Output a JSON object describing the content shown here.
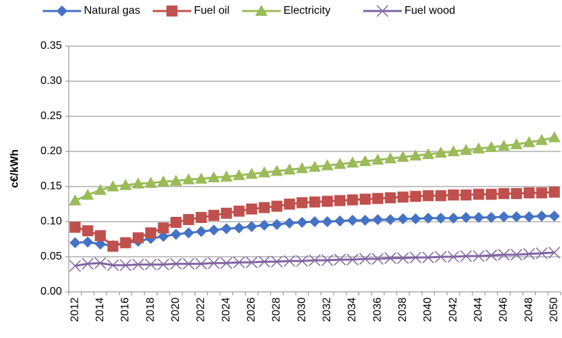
{
  "chart_data": {
    "type": "line",
    "y_label": "c€/kWh",
    "categories": [
      "2012",
      null,
      "2014",
      null,
      "2016",
      null,
      "2018",
      null,
      "2020",
      null,
      "2022",
      null,
      "2024",
      null,
      "2026",
      null,
      "2028",
      null,
      "2030",
      null,
      "2032",
      null,
      "2034",
      null,
      "2036",
      null,
      "2038",
      null,
      "2040",
      null,
      "2042",
      null,
      "2044",
      null,
      "2046",
      null,
      "2048",
      null,
      "2050"
    ],
    "series": [
      {
        "name": "Natural gas",
        "color": "#4472c4",
        "marker": "diamond",
        "values": [
          0.07,
          0.071,
          0.068,
          0.066,
          0.07,
          0.072,
          0.076,
          0.079,
          0.082,
          0.084,
          0.086,
          0.088,
          0.09,
          0.091,
          0.093,
          0.095,
          0.096,
          0.098,
          0.099,
          0.1,
          0.1,
          0.101,
          0.102,
          0.102,
          0.103,
          0.103,
          0.104,
          0.104,
          0.105,
          0.105,
          0.105,
          0.106,
          0.106,
          0.106,
          0.107,
          0.107,
          0.107,
          0.108,
          0.108
        ]
      },
      {
        "name": "Fuel oil",
        "color": "#c0504d",
        "marker": "square",
        "values": [
          0.092,
          0.087,
          0.08,
          0.065,
          0.07,
          0.077,
          0.084,
          0.091,
          0.099,
          0.103,
          0.106,
          0.109,
          0.112,
          0.115,
          0.118,
          0.12,
          0.122,
          0.125,
          0.127,
          0.128,
          0.129,
          0.13,
          0.131,
          0.132,
          0.133,
          0.134,
          0.135,
          0.136,
          0.137,
          0.137,
          0.138,
          0.138,
          0.139,
          0.139,
          0.14,
          0.14,
          0.141,
          0.141,
          0.142
        ]
      },
      {
        "name": "Electricity",
        "color": "#9bbb59",
        "marker": "triangle",
        "values": [
          0.13,
          0.138,
          0.145,
          0.15,
          0.152,
          0.154,
          0.155,
          0.157,
          0.158,
          0.16,
          0.161,
          0.163,
          0.164,
          0.166,
          0.168,
          0.17,
          0.172,
          0.174,
          0.176,
          0.178,
          0.18,
          0.182,
          0.184,
          0.186,
          0.188,
          0.19,
          0.192,
          0.194,
          0.196,
          0.198,
          0.2,
          0.202,
          0.204,
          0.206,
          0.208,
          0.21,
          0.213,
          0.216,
          0.22
        ]
      },
      {
        "name": "Fuel wood",
        "color": "#8064a2",
        "marker": "x",
        "values": [
          0.037,
          0.04,
          0.041,
          0.038,
          0.038,
          0.039,
          0.039,
          0.039,
          0.04,
          0.04,
          0.04,
          0.041,
          0.041,
          0.042,
          0.042,
          0.043,
          0.043,
          0.044,
          0.044,
          0.045,
          0.045,
          0.046,
          0.046,
          0.047,
          0.047,
          0.048,
          0.048,
          0.049,
          0.049,
          0.05,
          0.05,
          0.051,
          0.051,
          0.052,
          0.053,
          0.053,
          0.054,
          0.055,
          0.056
        ]
      }
    ],
    "ylim": [
      0,
      0.35
    ],
    "yticks": [
      {
        "value": 0,
        "label": "0.00"
      },
      {
        "value": 0.05,
        "label": "0.05"
      },
      {
        "value": 0.1,
        "label": "0.10"
      },
      {
        "value": 0.15,
        "label": "0.15"
      },
      {
        "value": 0.2,
        "label": "0.20"
      },
      {
        "value": 0.25,
        "label": "0.25"
      },
      {
        "value": 0.3,
        "label": "0.30"
      },
      {
        "value": 0.35,
        "label": "0.35"
      }
    ],
    "grid": true,
    "legend": "top"
  }
}
